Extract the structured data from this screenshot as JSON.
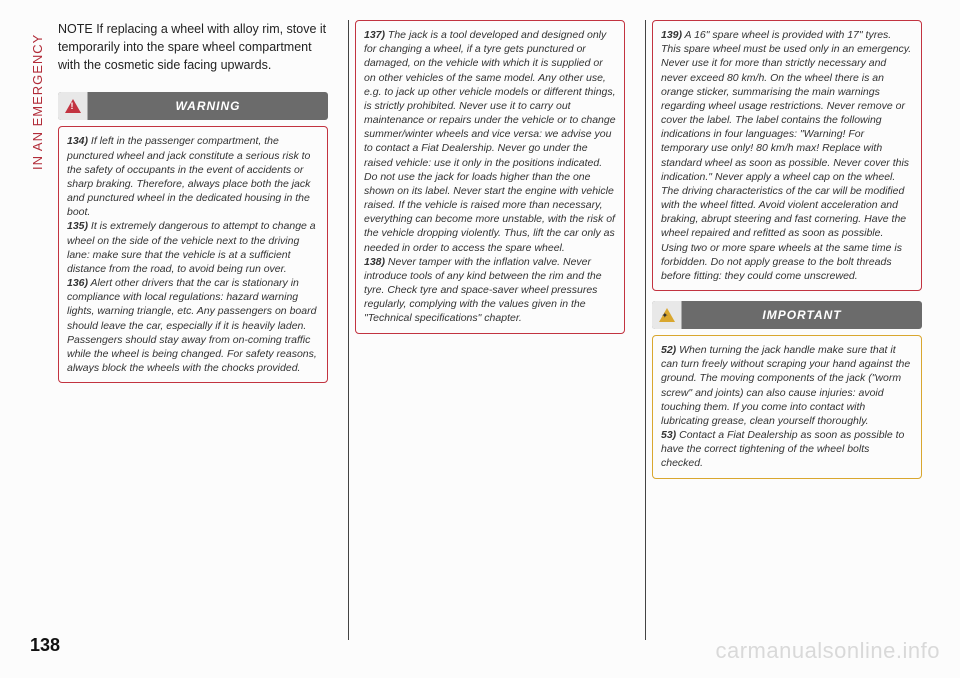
{
  "side_tab": "IN AN EMERGENCY",
  "page_number": "138",
  "watermark": "carmanualsonline.info",
  "note_text": "NOTE If replacing a wheel with alloy rim, stove it temporarily into the spare wheel compartment with the cosmetic side facing upwards.",
  "warning_label": "WARNING",
  "important_label": "IMPORTANT",
  "w134_num": "134)",
  "w134": " If left in the passenger compartment, the punctured wheel and jack constitute a serious risk to the safety of occupants in the event of accidents or sharp braking. Therefore, always place both the jack and punctured wheel in the dedicated housing in the boot.",
  "w135_num": "135)",
  "w135": " It is extremely dangerous to attempt to change a wheel on the side of the vehicle next to the driving lane: make sure that the vehicle is at a sufficient distance from the road, to avoid being run over.",
  "w136_num": "136)",
  "w136": " Alert other drivers that the car is stationary in compliance with local regulations: hazard warning lights, warning triangle, etc. Any passengers on board should leave the car, especially if it is heavily laden. Passengers should stay away from on-coming traffic while the wheel is being changed. For safety reasons, always block the wheels with the chocks provided.",
  "w137_num": "137)",
  "w137": " The jack is a tool developed and designed only for changing a wheel, if a tyre gets punctured or damaged, on the vehicle with which it is supplied or on other vehicles of the same model. Any other use, e.g. to jack up other vehicle models or different things, is strictly prohibited. Never use it to carry out maintenance or repairs under the vehicle or to change summer/winter wheels and vice versa: we advise you to contact a Fiat Dealership. Never go under the raised vehicle: use it only in the positions indicated. Do not use the jack for loads higher than the one shown on its label. Never start the engine with vehicle raised. If the vehicle is raised more than necessary, everything can become more unstable, with the risk of the vehicle dropping violently. Thus, lift the car only as needed in order to access the spare wheel.",
  "w138_num": "138)",
  "w138": " Never tamper with the inflation valve. Never introduce tools of any kind between the rim and the tyre. Check tyre and space-saver wheel pressures regularly, complying with the values given in the \"Technical specifications\" chapter.",
  "w139_num": "139)",
  "w139": " A 16\" spare wheel is provided with 17\" tyres. This spare wheel must be used only in an emergency. Never use it for more than strictly necessary and never exceed 80 km/h. On the wheel there is an orange sticker, summarising the main warnings regarding wheel usage restrictions. Never remove or cover the label. The label contains the following indications in four languages: \"Warning! For temporary use only! 80 km/h max! Replace with standard wheel as soon as possible. Never cover this indication.\" Never apply a wheel cap on the wheel. The driving characteristics of the car will be modified with the wheel fitted. Avoid violent acceleration and braking, abrupt steering and fast cornering. Have the wheel repaired and refitted as soon as possible. Using two or more spare wheels at the same time is forbidden. Do not apply grease to the bolt threads before fitting: they could come unscrewed.",
  "i52_num": "52)",
  "i52": " When turning the jack handle make sure that it can turn freely without scraping your hand against the ground. The moving components of the jack (\"worm screw\" and joints) can also cause injuries: avoid touching them. If you come into contact with lubricating grease, clean yourself thoroughly.",
  "i53_num": "53)",
  "i53": " Contact a Fiat Dealership as soon as possible to have the correct tightening of the wheel bolts checked.",
  "colors": {
    "accent_red": "#b12b38",
    "box_red": "#c23340",
    "box_yellow": "#d9a72f",
    "banner_bg": "#6b6b6b",
    "watermark": "#d9d9d9"
  }
}
